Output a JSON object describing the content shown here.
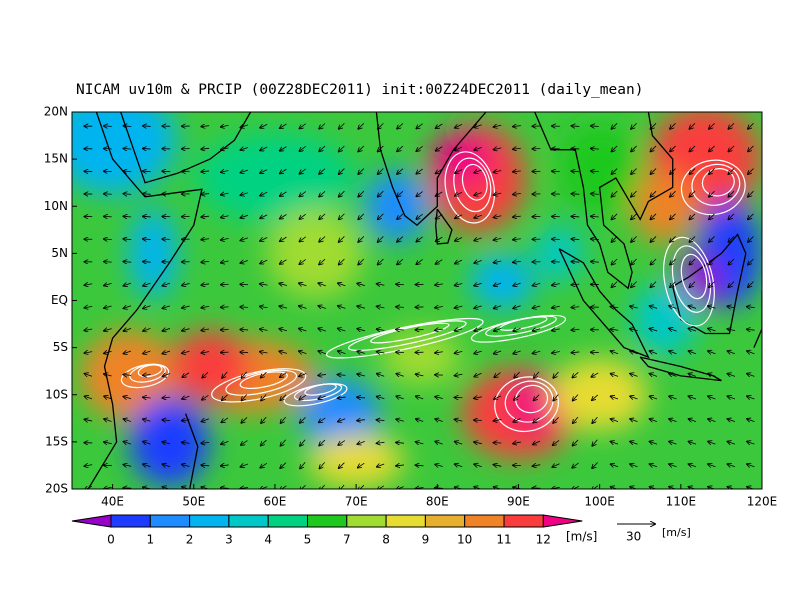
{
  "title": "NICAM uv10m & PRCIP (00Z28DEC2011) init:00Z24DEC2011 (daily_mean)",
  "map": {
    "lon_range": [
      35,
      120
    ],
    "lat_range": [
      -20,
      20
    ],
    "lon_ticks": [
      {
        "value": 40,
        "label": "40E"
      },
      {
        "value": 50,
        "label": "50E"
      },
      {
        "value": 60,
        "label": "60E"
      },
      {
        "value": 70,
        "label": "70E"
      },
      {
        "value": 80,
        "label": "80E"
      },
      {
        "value": 90,
        "label": "90E"
      },
      {
        "value": 100,
        "label": "100E"
      },
      {
        "value": 110,
        "label": "110E"
      },
      {
        "value": 120,
        "label": "120E"
      }
    ],
    "lat_ticks": [
      {
        "value": 20,
        "label": "20N"
      },
      {
        "value": 15,
        "label": "15N"
      },
      {
        "value": 10,
        "label": "10N"
      },
      {
        "value": 5,
        "label": "5N"
      },
      {
        "value": 0,
        "label": "EQ"
      },
      {
        "value": -5,
        "label": "5S"
      },
      {
        "value": -10,
        "label": "10S"
      },
      {
        "value": -15,
        "label": "15S"
      },
      {
        "value": -20,
        "label": "20S"
      }
    ]
  },
  "colorbar": {
    "labels": [
      0,
      1,
      2,
      3,
      4,
      5,
      7,
      8,
      9,
      10,
      11,
      12
    ],
    "unit": "[m/s]",
    "colors": [
      "#9600c8",
      "#1e3cff",
      "#1e8cff",
      "#00b4f0",
      "#00c8c8",
      "#00d282",
      "#1ec81e",
      "#a0dc32",
      "#e6dc32",
      "#e6af2d",
      "#f08228",
      "#fa3c3c",
      "#f00082"
    ]
  },
  "reference_vector": {
    "value": 30,
    "unit": "[m/s]"
  }
}
